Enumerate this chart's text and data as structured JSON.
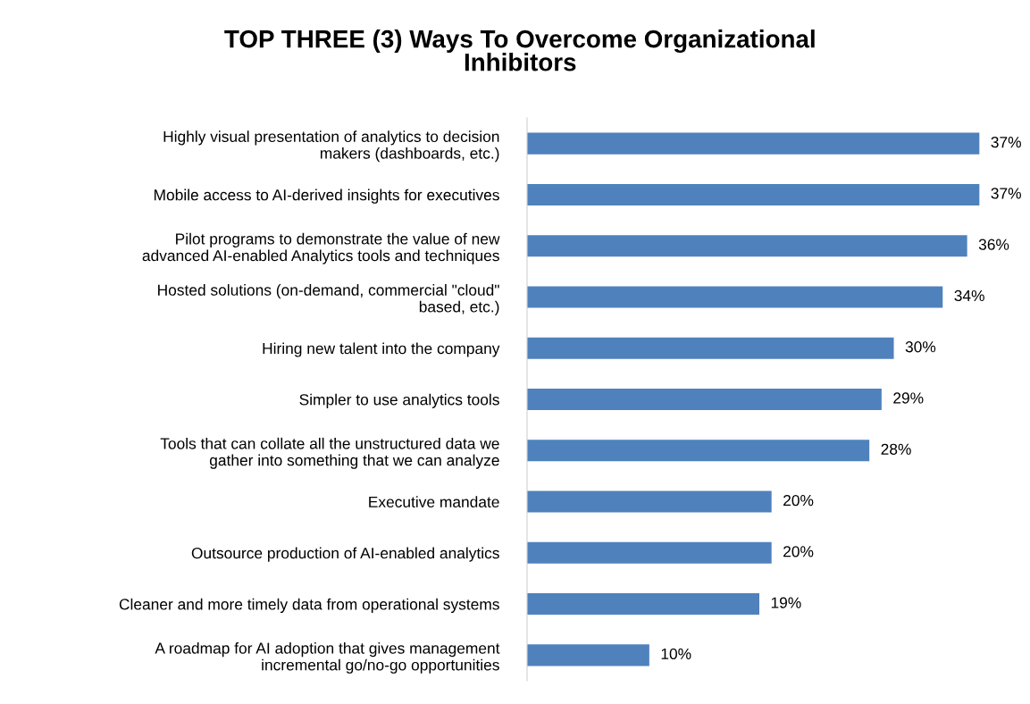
{
  "chart_data": {
    "type": "bar",
    "orientation": "horizontal",
    "title": "TOP THREE (3) Ways To Overcome Organizational\nInhibitors",
    "categories": [
      "Highly visual presentation of analytics to decision\nmakers (dashboards, etc.)",
      "Mobile access to AI-derived insights for executives",
      "Pilot programs to demonstrate the value of new\nadvanced AI-enabled Analytics tools and techniques",
      "Hosted solutions (on-demand, commercial \"cloud\"\nbased, etc.)",
      "Hiring new talent into the company",
      "Simpler to use analytics tools",
      "Tools that can collate all the unstructured data we\ngather into something that we can analyze",
      "Executive mandate",
      "Outsource production of AI-enabled analytics",
      "Cleaner and more timely data from operational systems",
      "A roadmap for AI adoption that gives management\nincremental go/no-go opportunities"
    ],
    "values": [
      37,
      37,
      36,
      34,
      30,
      29,
      28,
      20,
      20,
      19,
      10
    ],
    "value_labels": [
      "37%",
      "37%",
      "36%",
      "34%",
      "30%",
      "29%",
      "28%",
      "20%",
      "20%",
      "19%",
      "10%"
    ],
    "color": "#4f81bd",
    "tick_labels": "y",
    "grid": false,
    "legend": false
  }
}
